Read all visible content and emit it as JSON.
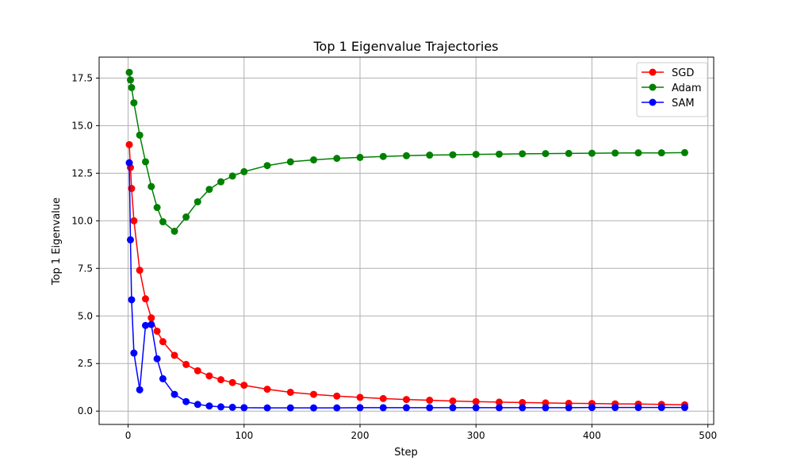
{
  "chart_data": {
    "type": "line",
    "title": "Top 1 Eigenvalue Trajectories",
    "xlabel": "Step",
    "ylabel": "Top 1 Eigenvalue",
    "xlim": [
      -25,
      505
    ],
    "ylim": [
      -0.7,
      18.6
    ],
    "xticks": [
      0,
      100,
      200,
      300,
      400,
      500
    ],
    "yticks": [
      0.0,
      2.5,
      5.0,
      7.5,
      10.0,
      12.5,
      15.0,
      17.5
    ],
    "ytick_labels": [
      "0.0",
      "2.5",
      "5.0",
      "7.5",
      "10.0",
      "12.5",
      "15.0",
      "17.5"
    ],
    "grid": true,
    "legend_position": "top-right",
    "series": [
      {
        "name": "SGD",
        "color": "#ff0000",
        "x": [
          1,
          2,
          3,
          5,
          10,
          15,
          20,
          25,
          30,
          40,
          50,
          60,
          70,
          80,
          90,
          100,
          120,
          140,
          160,
          180,
          200,
          220,
          240,
          260,
          280,
          300,
          320,
          340,
          360,
          380,
          400,
          420,
          440,
          460,
          480
        ],
        "y": [
          14.0,
          12.8,
          11.7,
          10.0,
          7.4,
          5.9,
          4.9,
          4.2,
          3.65,
          2.93,
          2.45,
          2.12,
          1.85,
          1.65,
          1.5,
          1.36,
          1.15,
          0.99,
          0.88,
          0.79,
          0.72,
          0.66,
          0.61,
          0.57,
          0.53,
          0.5,
          0.47,
          0.45,
          0.43,
          0.41,
          0.4,
          0.38,
          0.37,
          0.35,
          0.33
        ]
      },
      {
        "name": "Adam",
        "color": "#008000",
        "x": [
          1,
          2,
          3,
          5,
          10,
          15,
          20,
          25,
          30,
          40,
          50,
          60,
          70,
          80,
          90,
          100,
          120,
          140,
          160,
          180,
          200,
          220,
          240,
          260,
          280,
          300,
          320,
          340,
          360,
          380,
          400,
          420,
          440,
          460,
          480
        ],
        "y": [
          17.8,
          17.4,
          17.0,
          16.2,
          14.5,
          13.1,
          11.8,
          10.7,
          9.95,
          9.45,
          10.2,
          11.0,
          11.65,
          12.05,
          12.35,
          12.58,
          12.9,
          13.1,
          13.2,
          13.28,
          13.33,
          13.38,
          13.42,
          13.45,
          13.47,
          13.49,
          13.5,
          13.52,
          13.53,
          13.54,
          13.55,
          13.56,
          13.57,
          13.57,
          13.58
        ]
      },
      {
        "name": "SAM",
        "color": "#0000ff",
        "x": [
          1,
          2,
          3,
          5,
          10,
          15,
          20,
          25,
          30,
          40,
          50,
          60,
          70,
          80,
          90,
          100,
          120,
          140,
          160,
          180,
          200,
          220,
          240,
          260,
          280,
          300,
          320,
          340,
          360,
          380,
          400,
          420,
          440,
          460,
          480
        ],
        "y": [
          13.05,
          9.0,
          5.85,
          3.05,
          1.12,
          4.5,
          4.55,
          2.75,
          1.7,
          0.88,
          0.5,
          0.35,
          0.27,
          0.22,
          0.2,
          0.18,
          0.17,
          0.17,
          0.17,
          0.17,
          0.18,
          0.18,
          0.18,
          0.18,
          0.18,
          0.18,
          0.18,
          0.18,
          0.18,
          0.18,
          0.19,
          0.19,
          0.19,
          0.19,
          0.19
        ]
      }
    ]
  }
}
